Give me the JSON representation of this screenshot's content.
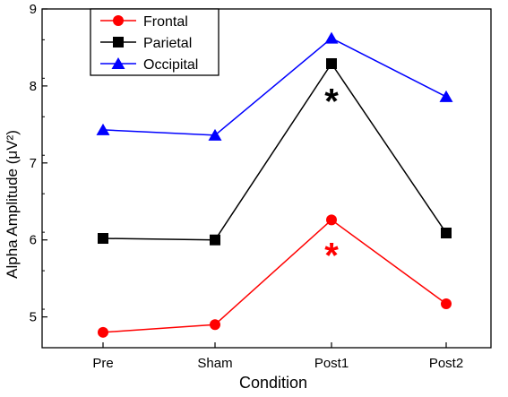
{
  "chart_data": {
    "type": "line",
    "categories": [
      "Pre",
      "Sham",
      "Post1",
      "Post2"
    ],
    "xlabel": "Condition",
    "ylabel": "Alpha Amplitude (μV²)",
    "ylim": [
      4.6,
      9.0
    ],
    "yticks": [
      5,
      6,
      7,
      8,
      9
    ],
    "grid": false,
    "legend_position": "top-left",
    "series": [
      {
        "name": "Frontal",
        "values": [
          4.8,
          4.9,
          6.26,
          5.17
        ],
        "color": "#ff0000",
        "marker": "circle"
      },
      {
        "name": "Parietal",
        "values": [
          6.02,
          6.0,
          8.29,
          6.09
        ],
        "color": "#000000",
        "marker": "square"
      },
      {
        "name": "Occipital",
        "values": [
          7.43,
          7.36,
          8.62,
          7.86
        ],
        "color": "#0000ff",
        "marker": "triangle"
      }
    ],
    "annotations": [
      {
        "text": "*",
        "category": "Post1",
        "y": 7.9,
        "color": "#000000"
      },
      {
        "text": "*",
        "category": "Post1",
        "y": 5.9,
        "color": "#ff0000"
      }
    ]
  }
}
